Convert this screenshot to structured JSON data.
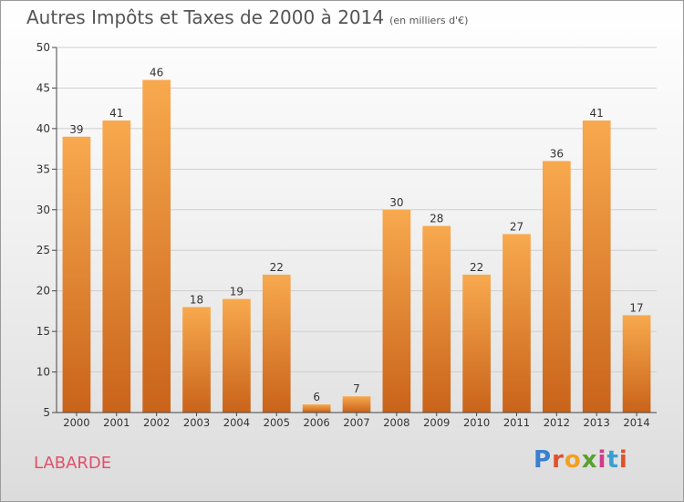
{
  "title": "Autres Impôts et Taxes de 2000 à 2014",
  "subtitle": "(en milliers d'€)",
  "place_label": "LABARDE",
  "logo": {
    "text": "Proxiti",
    "colors": [
      "#3a7fd0",
      "#e0502a",
      "#f2a020",
      "#5aa030",
      "#d03a8a",
      "#3a9fd0",
      "#e0502a"
    ]
  },
  "colors": {
    "bar_light": "#f8a94e",
    "bar_dark": "#c9631a",
    "axis": "#444444",
    "grid": "#cfcfcf",
    "text": "#333333"
  },
  "chart_data": {
    "type": "bar",
    "title": "Autres Impôts et Taxes de 2000 à 2014",
    "subtitle": "(en milliers d'€)",
    "xlabel": "",
    "ylabel": "",
    "categories": [
      "2000",
      "2001",
      "2002",
      "2003",
      "2004",
      "2005",
      "2006",
      "2007",
      "2008",
      "2009",
      "2010",
      "2011",
      "2012",
      "2013",
      "2014"
    ],
    "values": [
      39,
      41,
      46,
      18,
      19,
      22,
      6,
      7,
      30,
      28,
      22,
      27,
      36,
      41,
      17
    ],
    "ylim": [
      5,
      50
    ],
    "yticks": [
      5,
      10,
      15,
      20,
      25,
      30,
      35,
      40,
      45,
      50
    ],
    "grid": true,
    "legend": "none"
  }
}
